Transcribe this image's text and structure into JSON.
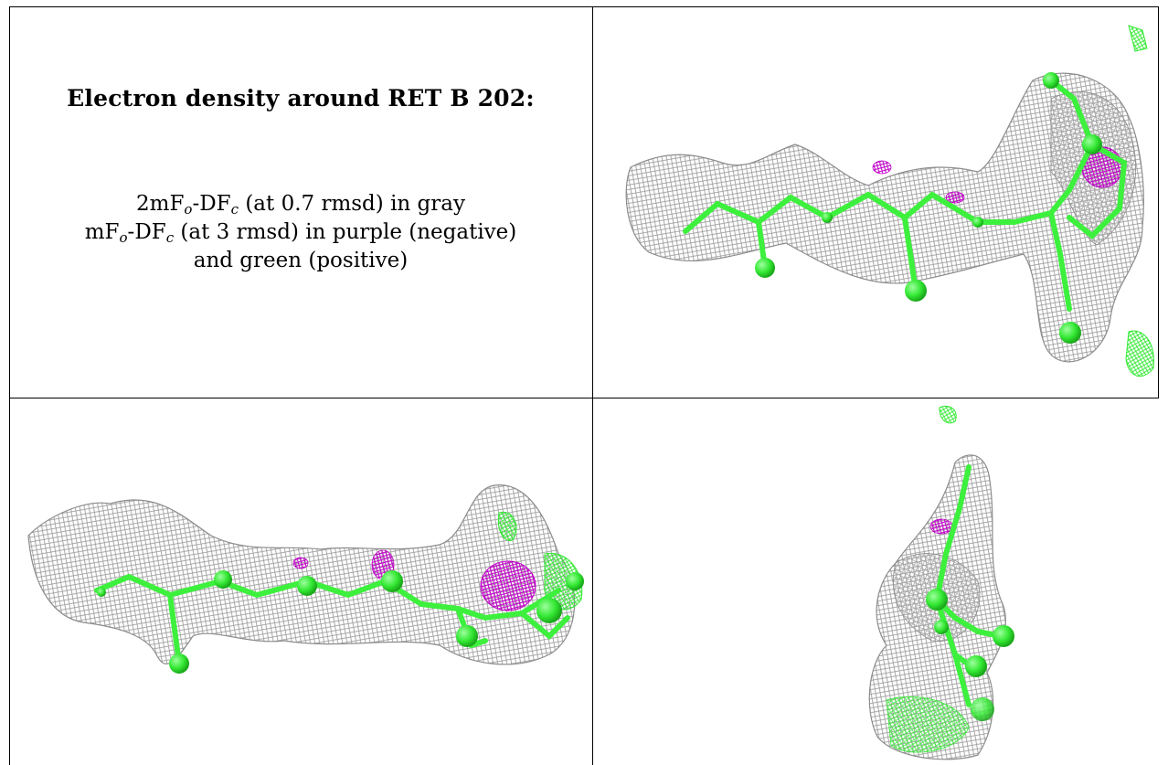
{
  "caption": {
    "title": "Electron density around RET B 202:",
    "line1": {
      "a": "2mF",
      "a_sub": "o",
      "b": "-DF",
      "b_sub": "c",
      "tail": " (at 0.7 rmsd) in gray"
    },
    "line2": {
      "a": "mF",
      "a_sub": "o",
      "b": "-DF",
      "b_sub": "c",
      "tail": " (at 3 rmsd) in purple (negative)"
    },
    "line3": "and green (positive)"
  },
  "colors": {
    "mesh_gray": "#8c8c8c",
    "negative_purple": "#c000c8",
    "positive_green": "#33e833",
    "atom_green": "#3df03d"
  },
  "panels": [
    {
      "name": "view-top-right",
      "description_type": "molecular density render"
    },
    {
      "name": "view-bottom-left",
      "description_type": "molecular density render"
    },
    {
      "name": "view-bottom-right",
      "description_type": "molecular density render"
    }
  ]
}
